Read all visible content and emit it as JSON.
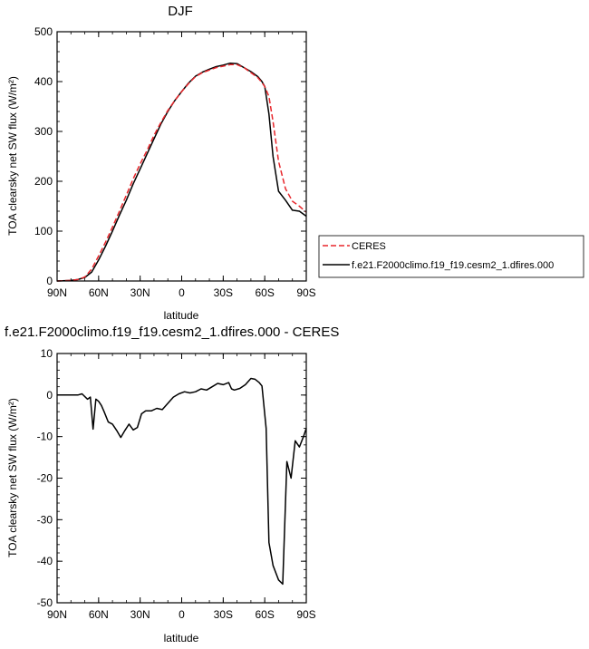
{
  "chart_data": [
    {
      "type": "line",
      "title": "DJF",
      "xlabel": "latitude",
      "ylabel": "TOA clearsky net SW flux (W/m²)",
      "xlim": [
        -90,
        90
      ],
      "ylim": [
        0,
        500
      ],
      "xticks": [
        -90,
        -60,
        -30,
        0,
        30,
        60,
        90
      ],
      "xtick_labels": [
        "90N",
        "60N",
        "30N",
        "0",
        "30S",
        "60S",
        "90S"
      ],
      "yticks": [
        0,
        100,
        200,
        300,
        400,
        500
      ],
      "ytick_labels": [
        "0",
        "100",
        "200",
        "300",
        "400",
        "500"
      ],
      "legend_placement": "right",
      "series": [
        {
          "name": "CERES",
          "color": "#e8262b",
          "dash": "dashed",
          "x": [
            -90,
            -80,
            -75,
            -70,
            -65,
            -60,
            -55,
            -50,
            -45,
            -40,
            -35,
            -30,
            -25,
            -20,
            -15,
            -10,
            -5,
            0,
            5,
            10,
            15,
            20,
            25,
            30,
            35,
            40,
            45,
            50,
            55,
            58,
            60,
            63,
            66,
            70,
            75,
            80,
            85,
            90
          ],
          "y": [
            0,
            1,
            3,
            8,
            24,
            50,
            78,
            108,
            140,
            172,
            205,
            235,
            262,
            292,
            318,
            342,
            362,
            380,
            396,
            410,
            418,
            423,
            428,
            431,
            434,
            434,
            428,
            418,
            408,
            398,
            390,
            370,
            320,
            240,
            185,
            160,
            150,
            138
          ]
        },
        {
          "name": "f.e21.F2000climo.f19_f19.cesm2_1.dfires.000",
          "color": "#000000",
          "dash": "solid",
          "x": [
            -90,
            -80,
            -75,
            -70,
            -65,
            -60,
            -55,
            -50,
            -45,
            -40,
            -35,
            -30,
            -25,
            -20,
            -15,
            -10,
            -5,
            0,
            5,
            10,
            15,
            20,
            25,
            30,
            35,
            40,
            45,
            50,
            55,
            58,
            60,
            63,
            66,
            70,
            75,
            80,
            85,
            90
          ],
          "y": [
            0,
            1,
            3,
            7,
            18,
            42,
            70,
            100,
            132,
            162,
            195,
            225,
            255,
            285,
            315,
            340,
            362,
            380,
            397,
            411,
            419,
            425,
            430,
            433,
            437,
            436,
            428,
            420,
            410,
            400,
            390,
            335,
            250,
            180,
            162,
            142,
            140,
            130
          ]
        }
      ]
    },
    {
      "type": "line",
      "title": "f.e21.F2000climo.f19_f19.cesm2_1.dfires.000 - CERES",
      "xlabel": "latitude",
      "ylabel": "TOA clearsky net SW flux (W/m²)",
      "xlim": [
        -90,
        90
      ],
      "ylim": [
        -50,
        10
      ],
      "xticks": [
        -90,
        -60,
        -30,
        0,
        30,
        60,
        90
      ],
      "xtick_labels": [
        "90N",
        "60N",
        "30N",
        "0",
        "30S",
        "60S",
        "90S"
      ],
      "yticks": [
        -50,
        -40,
        -30,
        -20,
        -10,
        0,
        10
      ],
      "ytick_labels": [
        "-50",
        "-40",
        "-30",
        "-20",
        "-10",
        "0",
        "10"
      ],
      "series": [
        {
          "color": "#000000",
          "dash": "solid",
          "x": [
            -90,
            -80,
            -75,
            -72,
            -68,
            -66,
            -64,
            -62,
            -60,
            -58,
            -56,
            -53,
            -50,
            -47,
            -44,
            -41,
            -38,
            -35,
            -32,
            -29,
            -26,
            -22,
            -18,
            -14,
            -10,
            -6,
            -2,
            2,
            6,
            10,
            14,
            18,
            22,
            26,
            30,
            34,
            36,
            38,
            42,
            46,
            50,
            53,
            56,
            58,
            61,
            63,
            66,
            70,
            73,
            76,
            79,
            82,
            85,
            88,
            90
          ],
          "y": [
            0,
            0,
            0,
            0.3,
            -1,
            -0.5,
            -8.2,
            -1,
            -1.5,
            -2.5,
            -4,
            -6.5,
            -7,
            -8.5,
            -10.2,
            -8.5,
            -7,
            -8.4,
            -7.8,
            -4.5,
            -3.8,
            -3.8,
            -3.2,
            -3.5,
            -2,
            -0.5,
            0.3,
            0.8,
            0.5,
            0.8,
            1.5,
            1.2,
            2,
            2.8,
            2.5,
            3,
            1.5,
            1.2,
            1.6,
            2.5,
            4,
            3.8,
            3,
            2.2,
            -8,
            -35.5,
            -41,
            -44.5,
            -45.5,
            -16,
            -20,
            -11,
            -12.5,
            -10,
            -8
          ]
        }
      ]
    }
  ],
  "legend": {
    "entries": [
      {
        "label": "CERES"
      },
      {
        "label": "f.e21.F2000climo.f19_f19.cesm2_1.dfires.000"
      }
    ]
  }
}
